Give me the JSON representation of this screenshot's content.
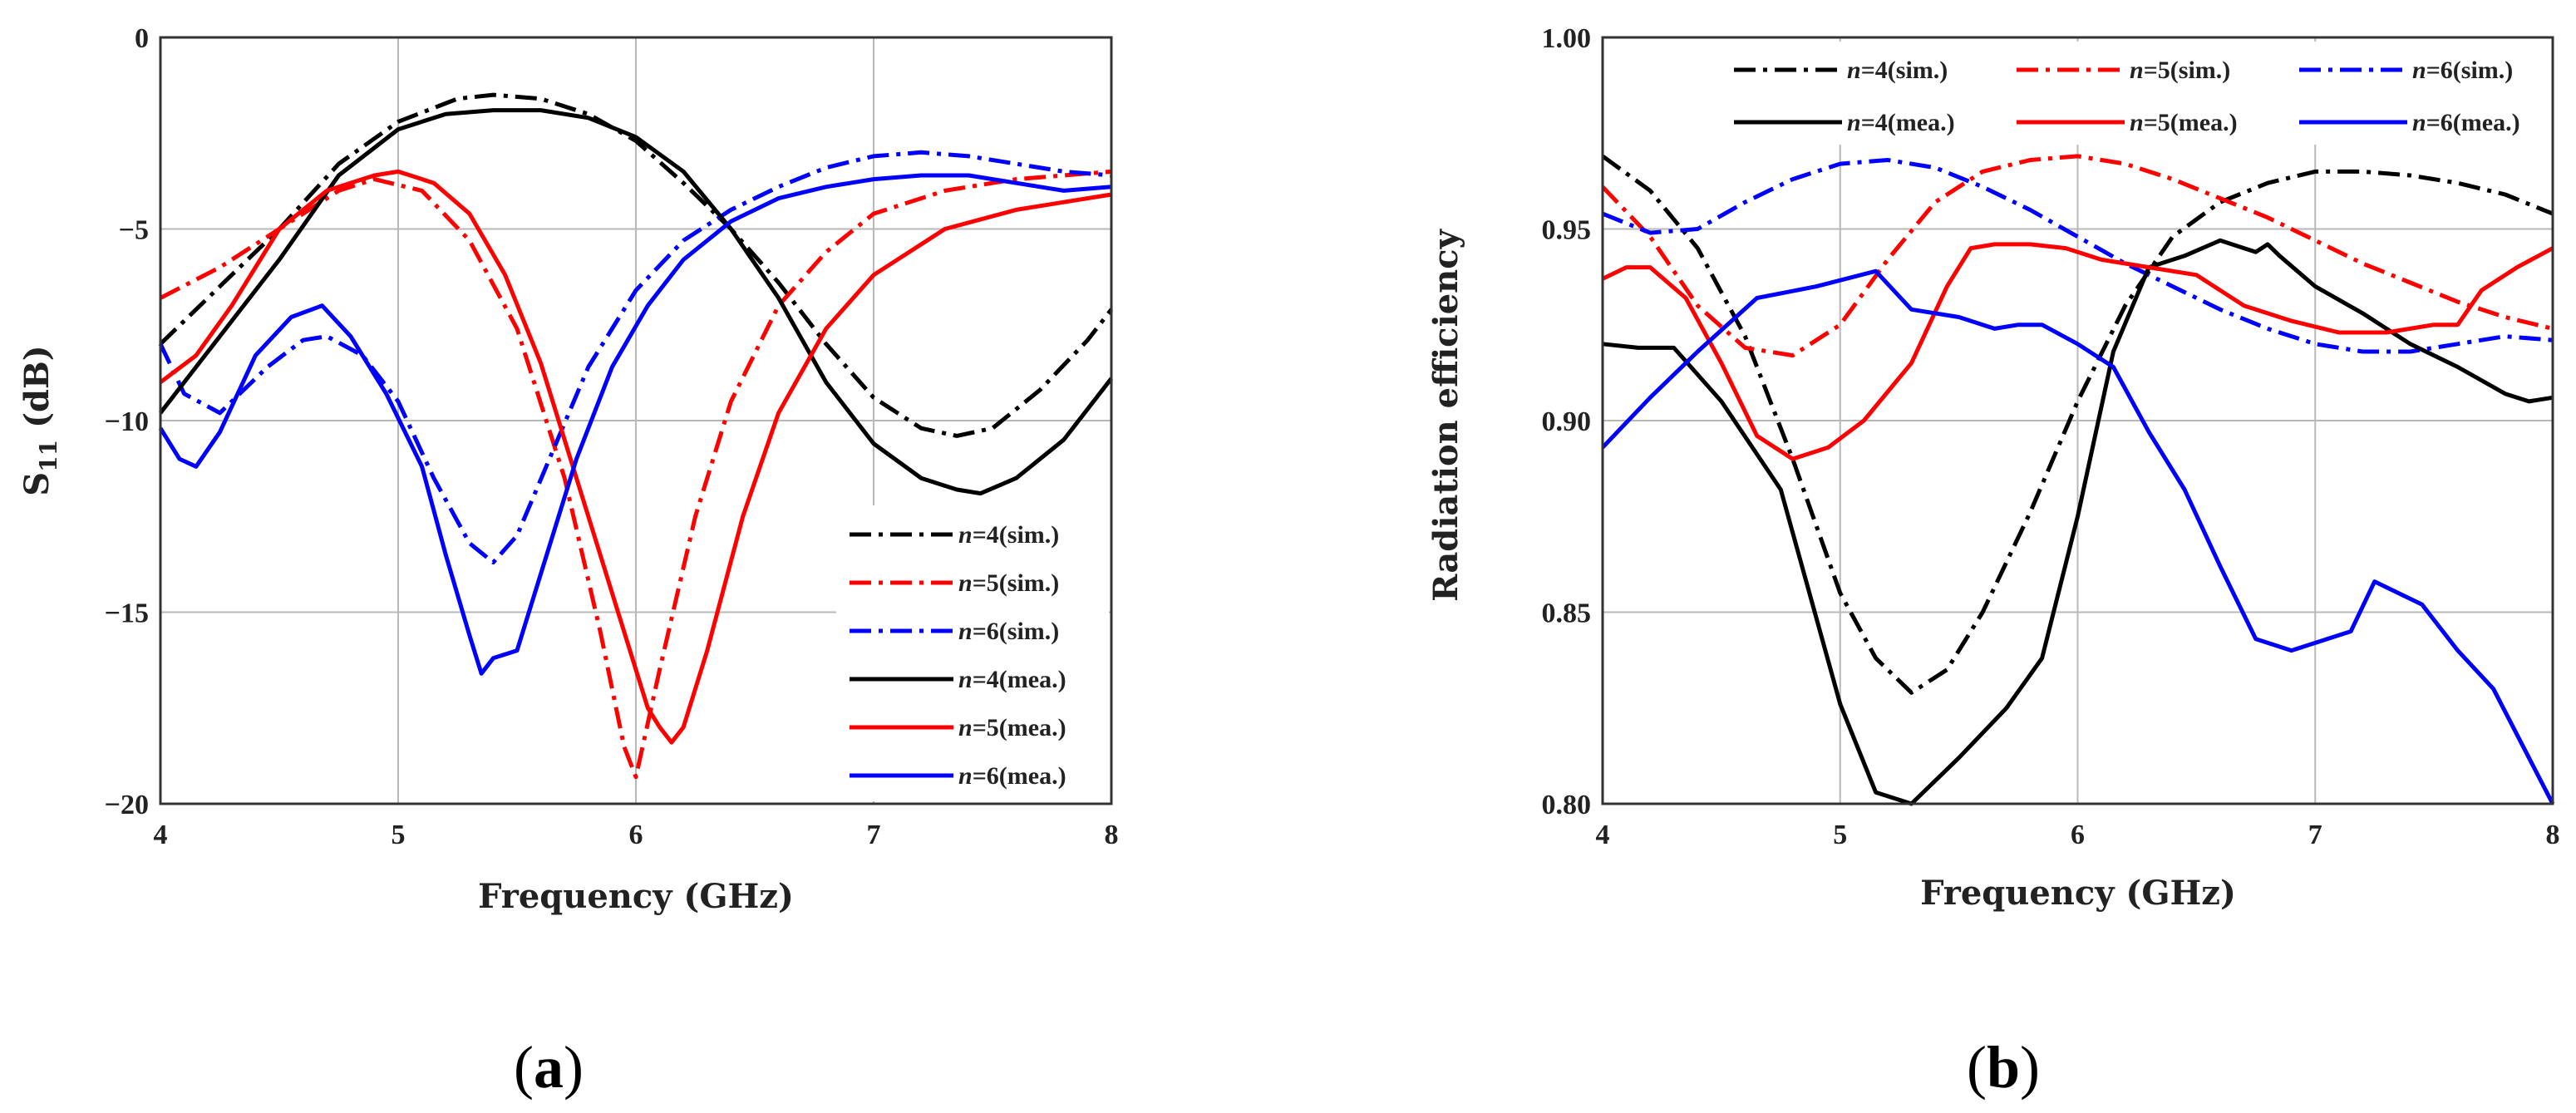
{
  "chart_data": [
    {
      "type": "line",
      "panel_label": "a",
      "xlabel": "Frequency (GHz)",
      "ylabel_main": "S",
      "ylabel_sub": "11",
      "ylabel_rest": " (dB)",
      "xlim": [
        4,
        8
      ],
      "ylim": [
        -20,
        0
      ],
      "xticks": [
        4,
        5,
        6,
        7,
        8
      ],
      "yticks": [
        0,
        -5,
        -10,
        -15,
        -20
      ],
      "ytick_labels": [
        "0",
        "−5",
        "−10",
        "−15",
        "−20"
      ],
      "grid": true,
      "legend_position": "bottom-right",
      "series": [
        {
          "name": "n=4(sim.)",
          "italic": "n",
          "rest": "=4(sim.)",
          "color": "#000000",
          "dash": "dashdot",
          "x": [
            4.0,
            4.25,
            4.5,
            4.75,
            5.0,
            5.25,
            5.4,
            5.6,
            5.8,
            6.0,
            6.2,
            6.4,
            6.6,
            6.8,
            7.0,
            7.2,
            7.35,
            7.5,
            7.7,
            7.9,
            8.0
          ],
          "y": [
            -8.0,
            -6.5,
            -5.0,
            -3.3,
            -2.2,
            -1.6,
            -1.5,
            -1.6,
            -2.0,
            -2.7,
            -3.8,
            -5.0,
            -6.4,
            -8.0,
            -9.4,
            -10.2,
            -10.4,
            -10.2,
            -9.2,
            -7.9,
            -7.1
          ]
        },
        {
          "name": "n=5(sim.)",
          "italic": "n",
          "rest": "=5(sim.)",
          "color": "#ff0000",
          "dash": "dashdot",
          "x": [
            4.0,
            4.25,
            4.5,
            4.75,
            4.9,
            5.1,
            5.3,
            5.5,
            5.7,
            5.85,
            5.95,
            6.0,
            6.1,
            6.25,
            6.4,
            6.6,
            6.8,
            7.0,
            7.3,
            7.6,
            8.0
          ],
          "y": [
            -6.8,
            -6.0,
            -5.0,
            -4.0,
            -3.7,
            -4.0,
            -5.3,
            -7.6,
            -11.5,
            -15.5,
            -18.5,
            -19.3,
            -16.5,
            -12.5,
            -9.5,
            -7.0,
            -5.6,
            -4.6,
            -4.0,
            -3.7,
            -3.5
          ]
        },
        {
          "name": "n=6(sim.)",
          "italic": "n",
          "rest": "=6(sim.)",
          "color": "#0000ff",
          "dash": "dashdot",
          "x": [
            4.0,
            4.1,
            4.25,
            4.45,
            4.6,
            4.7,
            4.85,
            5.0,
            5.15,
            5.3,
            5.4,
            5.5,
            5.65,
            5.8,
            6.0,
            6.2,
            6.4,
            6.6,
            6.8,
            7.0,
            7.2,
            7.4,
            7.6,
            7.8,
            8.0
          ],
          "y": [
            -8.0,
            -9.3,
            -9.8,
            -8.6,
            -7.9,
            -7.8,
            -8.3,
            -9.5,
            -11.5,
            -13.2,
            -13.7,
            -13.0,
            -10.8,
            -8.6,
            -6.6,
            -5.3,
            -4.5,
            -3.9,
            -3.4,
            -3.1,
            -3.0,
            -3.1,
            -3.3,
            -3.5,
            -3.6
          ]
        },
        {
          "name": "n=4(mea.)",
          "italic": "n",
          "rest": "=4(mea.)",
          "color": "#000000",
          "dash": "solid",
          "x": [
            4.0,
            4.1,
            4.25,
            4.5,
            4.75,
            5.0,
            5.2,
            5.4,
            5.6,
            5.8,
            6.0,
            6.2,
            6.4,
            6.6,
            6.8,
            7.0,
            7.2,
            7.35,
            7.45,
            7.6,
            7.8,
            8.0
          ],
          "y": [
            -9.8,
            -9.0,
            -7.8,
            -5.8,
            -3.6,
            -2.4,
            -2.0,
            -1.9,
            -1.9,
            -2.1,
            -2.6,
            -3.5,
            -5.0,
            -6.8,
            -9.0,
            -10.6,
            -11.5,
            -11.8,
            -11.9,
            -11.5,
            -10.5,
            -8.9
          ]
        },
        {
          "name": "n=5(mea.)",
          "italic": "n",
          "rest": "=5(mea.)",
          "color": "#ff0000",
          "dash": "solid",
          "x": [
            4.0,
            4.15,
            4.3,
            4.5,
            4.7,
            4.9,
            5.0,
            5.15,
            5.3,
            5.45,
            5.6,
            5.75,
            5.9,
            6.0,
            6.05,
            6.1,
            6.15,
            6.2,
            6.3,
            6.45,
            6.6,
            6.8,
            7.0,
            7.3,
            7.6,
            8.0
          ],
          "y": [
            -9.0,
            -8.3,
            -7.0,
            -5.0,
            -4.0,
            -3.6,
            -3.5,
            -3.8,
            -4.6,
            -6.2,
            -8.5,
            -11.5,
            -14.5,
            -16.5,
            -17.5,
            -18.0,
            -18.4,
            -18.0,
            -16.0,
            -12.5,
            -9.8,
            -7.6,
            -6.2,
            -5.0,
            -4.5,
            -4.1
          ]
        },
        {
          "name": "n=6(mea.)",
          "italic": "n",
          "rest": "=6(mea.)",
          "color": "#0000ff",
          "dash": "solid",
          "x": [
            4.0,
            4.08,
            4.15,
            4.25,
            4.4,
            4.55,
            4.68,
            4.8,
            4.95,
            5.1,
            5.2,
            5.3,
            5.35,
            5.4,
            5.5,
            5.6,
            5.75,
            5.9,
            6.05,
            6.2,
            6.4,
            6.6,
            6.8,
            7.0,
            7.2,
            7.4,
            7.6,
            7.8,
            8.0
          ],
          "y": [
            -10.2,
            -11.0,
            -11.2,
            -10.3,
            -8.3,
            -7.3,
            -7.0,
            -7.8,
            -9.3,
            -11.2,
            -13.5,
            -15.6,
            -16.6,
            -16.2,
            -16.0,
            -14.0,
            -11.0,
            -8.6,
            -7.0,
            -5.8,
            -4.8,
            -4.2,
            -3.9,
            -3.7,
            -3.6,
            -3.6,
            -3.8,
            -4.0,
            -3.9
          ]
        }
      ]
    },
    {
      "type": "line",
      "panel_label": "b",
      "xlabel": "Frequency (GHz)",
      "ylabel": "Radiation efficiency",
      "xlim": [
        4,
        8
      ],
      "ylim": [
        0.8,
        1.0
      ],
      "xticks": [
        4,
        5,
        6,
        7,
        8
      ],
      "yticks": [
        1.0,
        0.95,
        0.9,
        0.85,
        0.8
      ],
      "ytick_labels": [
        "1.00",
        "0.95",
        "0.90",
        "0.85",
        "0.80"
      ],
      "grid": true,
      "legend_position": "top",
      "series": [
        {
          "name": "n=4(sim.)",
          "italic": "n",
          "rest": "=4(sim.)",
          "color": "#000000",
          "dash": "dashdot",
          "x": [
            4.0,
            4.2,
            4.4,
            4.6,
            4.8,
            5.0,
            5.15,
            5.3,
            5.45,
            5.6,
            5.8,
            6.0,
            6.2,
            6.4,
            6.6,
            6.8,
            7.0,
            7.2,
            7.4,
            7.6,
            7.8,
            8.0
          ],
          "y": [
            0.969,
            0.96,
            0.945,
            0.922,
            0.89,
            0.855,
            0.838,
            0.829,
            0.835,
            0.85,
            0.876,
            0.905,
            0.93,
            0.948,
            0.957,
            0.962,
            0.965,
            0.965,
            0.964,
            0.962,
            0.959,
            0.954
          ]
        },
        {
          "name": "n=5(sim.)",
          "italic": "n",
          "rest": "=5(sim.)",
          "color": "#ff0000",
          "dash": "dashdot",
          "x": [
            4.0,
            4.2,
            4.4,
            4.6,
            4.8,
            5.0,
            5.2,
            5.4,
            5.6,
            5.8,
            6.0,
            6.2,
            6.4,
            6.6,
            6.8,
            7.0,
            7.2,
            7.4,
            7.6,
            7.8,
            8.0
          ],
          "y": [
            0.961,
            0.948,
            0.93,
            0.919,
            0.917,
            0.925,
            0.942,
            0.957,
            0.965,
            0.968,
            0.969,
            0.967,
            0.963,
            0.958,
            0.953,
            0.947,
            0.941,
            0.936,
            0.931,
            0.927,
            0.924
          ]
        },
        {
          "name": "n=6(sim.)",
          "italic": "n",
          "rest": "=6(sim.)",
          "color": "#0000ff",
          "dash": "dashdot",
          "x": [
            4.0,
            4.2,
            4.4,
            4.6,
            4.8,
            5.0,
            5.2,
            5.4,
            5.6,
            5.8,
            6.0,
            6.2,
            6.4,
            6.6,
            6.8,
            7.0,
            7.2,
            7.4,
            7.6,
            7.8,
            8.0
          ],
          "y": [
            0.954,
            0.949,
            0.95,
            0.957,
            0.963,
            0.967,
            0.968,
            0.966,
            0.961,
            0.955,
            0.948,
            0.941,
            0.935,
            0.929,
            0.924,
            0.92,
            0.918,
            0.918,
            0.92,
            0.922,
            0.921
          ]
        },
        {
          "name": "n=4(mea.)",
          "italic": "n",
          "rest": "=4(mea.)",
          "color": "#000000",
          "dash": "solid",
          "x": [
            4.0,
            4.15,
            4.3,
            4.5,
            4.75,
            5.0,
            5.15,
            5.3,
            5.5,
            5.7,
            5.85,
            6.0,
            6.15,
            6.3,
            6.45,
            6.6,
            6.75,
            6.8,
            6.85,
            7.0,
            7.2,
            7.4,
            7.6,
            7.8,
            7.9,
            8.0
          ],
          "y": [
            0.92,
            0.919,
            0.919,
            0.905,
            0.882,
            0.826,
            0.803,
            0.8,
            0.812,
            0.825,
            0.838,
            0.875,
            0.918,
            0.94,
            0.943,
            0.947,
            0.944,
            0.946,
            0.943,
            0.935,
            0.928,
            0.92,
            0.914,
            0.907,
            0.905,
            0.906
          ]
        },
        {
          "name": "n=5(mea.)",
          "italic": "n",
          "rest": "=5(mea.)",
          "color": "#ff0000",
          "dash": "solid",
          "x": [
            4.0,
            4.1,
            4.2,
            4.35,
            4.5,
            4.65,
            4.8,
            4.95,
            5.1,
            5.3,
            5.45,
            5.55,
            5.65,
            5.8,
            5.95,
            6.1,
            6.3,
            6.5,
            6.7,
            6.9,
            7.1,
            7.3,
            7.5,
            7.6,
            7.7,
            7.85,
            8.0
          ],
          "y": [
            0.937,
            0.94,
            0.94,
            0.932,
            0.915,
            0.896,
            0.89,
            0.893,
            0.9,
            0.915,
            0.935,
            0.945,
            0.946,
            0.946,
            0.945,
            0.942,
            0.94,
            0.938,
            0.93,
            0.926,
            0.923,
            0.923,
            0.925,
            0.925,
            0.934,
            0.94,
            0.945
          ]
        },
        {
          "name": "n=6(mea.)",
          "italic": "n",
          "rest": "=6(mea.)",
          "color": "#0000ff",
          "dash": "solid",
          "x": [
            4.0,
            4.2,
            4.4,
            4.65,
            4.9,
            5.15,
            5.3,
            5.5,
            5.65,
            5.75,
            5.85,
            6.0,
            6.15,
            6.3,
            6.45,
            6.6,
            6.75,
            6.9,
            7.05,
            7.15,
            7.25,
            7.35,
            7.45,
            7.6,
            7.75,
            7.9,
            8.0
          ],
          "y": [
            0.893,
            0.906,
            0.918,
            0.932,
            0.935,
            0.939,
            0.929,
            0.927,
            0.924,
            0.925,
            0.925,
            0.92,
            0.914,
            0.897,
            0.882,
            0.862,
            0.843,
            0.84,
            0.843,
            0.845,
            0.858,
            0.855,
            0.852,
            0.84,
            0.83,
            0.812,
            0.8
          ]
        }
      ]
    }
  ]
}
